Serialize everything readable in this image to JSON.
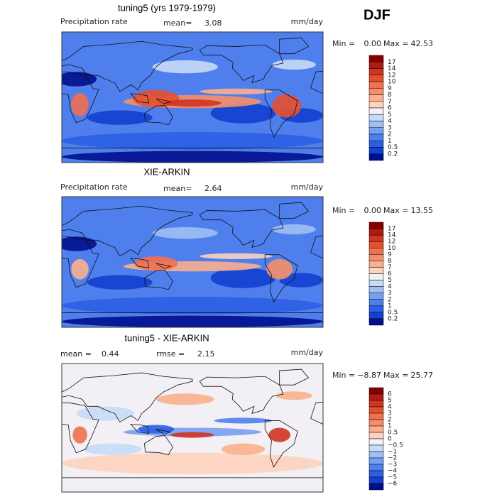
{
  "season": "DJF",
  "panels": [
    {
      "title": "tuning5 (yrs 1979-1979)",
      "left_label": "Precipitation rate",
      "stats": [
        {
          "label": "mean=",
          "value": "3.08"
        }
      ],
      "units": "mm/day",
      "min_label": "Min =",
      "min_value": "0.00",
      "max_label": "Max =",
      "max_value": "42.53",
      "colorbar": {
        "labels": [
          "17",
          "14",
          "12",
          "10",
          "9",
          "8",
          "7",
          "6",
          "5",
          "4",
          "3",
          "2",
          "1",
          "0.5",
          "0.2"
        ],
        "colors": [
          "#870000",
          "#b01a10",
          "#d03422",
          "#e4502f",
          "#f07050",
          "#f68f6c",
          "#fab08e",
          "#fdd3bd",
          "#f2f0f4",
          "#c6dbf7",
          "#9fc0f4",
          "#779ff0",
          "#4f7fec",
          "#2b5fe4",
          "#1240cf",
          "#000f8c"
        ]
      }
    },
    {
      "title": "XIE-ARKIN",
      "left_label": "Precipitation rate",
      "stats": [
        {
          "label": "mean=",
          "value": "2.64"
        }
      ],
      "units": "mm/day",
      "min_label": "Min =",
      "min_value": "0.00",
      "max_label": "Max =",
      "max_value": "13.55",
      "colorbar": {
        "labels": [
          "17",
          "14",
          "12",
          "10",
          "9",
          "8",
          "7",
          "6",
          "5",
          "4",
          "3",
          "2",
          "1",
          "0.5",
          "0.2"
        ],
        "colors": [
          "#870000",
          "#b01a10",
          "#d03422",
          "#e4502f",
          "#f07050",
          "#f68f6c",
          "#fab08e",
          "#fdd3bd",
          "#f2f0f4",
          "#c6dbf7",
          "#9fc0f4",
          "#779ff0",
          "#4f7fec",
          "#2b5fe4",
          "#1240cf",
          "#000f8c"
        ]
      }
    },
    {
      "title": "tuning5 - XIE-ARKIN",
      "stats": [
        {
          "label": "mean =",
          "value": "0.44"
        },
        {
          "label": "rmse =",
          "value": "2.15"
        }
      ],
      "units": "mm/day",
      "min_label": "Min =",
      "min_value": "−8.87",
      "max_label": "Max =",
      "max_value": "25.77",
      "colorbar": {
        "labels": [
          "6",
          "5",
          "4",
          "3",
          "2",
          "1",
          "0.5",
          "0",
          "−0.5",
          "−1",
          "−2",
          "−3",
          "−4",
          "−5",
          "−6"
        ],
        "colors": [
          "#870000",
          "#b01a10",
          "#d03422",
          "#e4502f",
          "#f07050",
          "#f68f6c",
          "#fab08e",
          "#fdd3bd",
          "#f2f0f4",
          "#c6dbf7",
          "#9fc0f4",
          "#779ff0",
          "#4f7fec",
          "#2b5fe4",
          "#1240cf",
          "#000f8c"
        ]
      }
    }
  ]
}
